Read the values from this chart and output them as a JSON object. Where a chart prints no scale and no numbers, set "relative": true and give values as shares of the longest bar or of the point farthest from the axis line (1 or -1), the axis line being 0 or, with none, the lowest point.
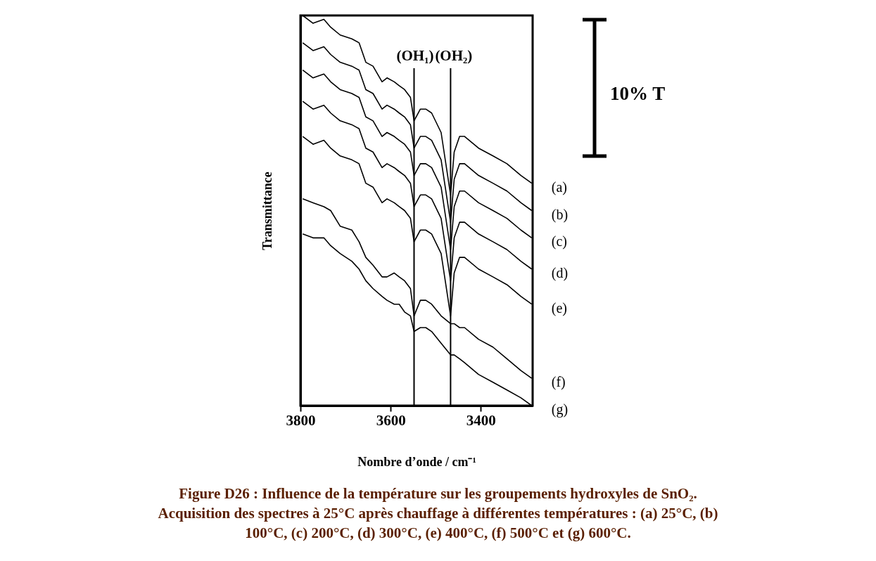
{
  "chart_data": {
    "type": "line",
    "relative": true,
    "xlabel": "Nombre d’onde / cm⁻¹",
    "ylabel": "Transmittance",
    "xlim": [
      3800,
      3285
    ],
    "xticks": [
      3800,
      3600,
      3400
    ],
    "x": [
      3795,
      3772,
      3748,
      3733,
      3712,
      3686,
      3670,
      3655,
      3639,
      3619,
      3608,
      3592,
      3581,
      3569,
      3556,
      3548,
      3534,
      3522,
      3509,
      3488,
      3467,
      3459,
      3447,
      3436,
      3405,
      3373,
      3342,
      3311,
      3287
    ],
    "series": [
      {
        "name": "(a)",
        "color": "#000000",
        "values": [
          1.0,
          0.98,
          0.99,
          0.97,
          0.95,
          0.94,
          0.93,
          0.88,
          0.87,
          0.83,
          0.84,
          0.83,
          0.82,
          0.81,
          0.79,
          0.73,
          0.76,
          0.76,
          0.75,
          0.7,
          0.54,
          0.65,
          0.69,
          0.69,
          0.66,
          0.64,
          0.62,
          0.59,
          0.57
        ]
      },
      {
        "name": "(b)",
        "color": "#000000",
        "values": [
          0.93,
          0.91,
          0.92,
          0.9,
          0.88,
          0.87,
          0.86,
          0.81,
          0.8,
          0.76,
          0.77,
          0.76,
          0.75,
          0.74,
          0.72,
          0.66,
          0.69,
          0.69,
          0.68,
          0.63,
          0.47,
          0.58,
          0.62,
          0.62,
          0.59,
          0.57,
          0.55,
          0.52,
          0.5
        ]
      },
      {
        "name": "(c)",
        "color": "#000000",
        "values": [
          0.86,
          0.84,
          0.85,
          0.83,
          0.81,
          0.8,
          0.79,
          0.74,
          0.73,
          0.69,
          0.7,
          0.69,
          0.68,
          0.67,
          0.65,
          0.59,
          0.62,
          0.62,
          0.61,
          0.56,
          0.4,
          0.51,
          0.55,
          0.55,
          0.52,
          0.5,
          0.48,
          0.45,
          0.43
        ]
      },
      {
        "name": "(d)",
        "color": "#000000",
        "values": [
          0.78,
          0.76,
          0.77,
          0.75,
          0.73,
          0.72,
          0.71,
          0.66,
          0.65,
          0.61,
          0.62,
          0.61,
          0.6,
          0.59,
          0.57,
          0.51,
          0.54,
          0.54,
          0.53,
          0.48,
          0.32,
          0.43,
          0.47,
          0.47,
          0.44,
          0.42,
          0.4,
          0.37,
          0.35
        ]
      },
      {
        "name": "(e)",
        "color": "#000000",
        "values": [
          0.69,
          0.67,
          0.68,
          0.66,
          0.64,
          0.63,
          0.62,
          0.57,
          0.56,
          0.52,
          0.53,
          0.52,
          0.51,
          0.5,
          0.48,
          0.42,
          0.45,
          0.45,
          0.44,
          0.39,
          0.23,
          0.34,
          0.38,
          0.38,
          0.35,
          0.33,
          0.31,
          0.28,
          0.26
        ]
      },
      {
        "name": "(f)",
        "color": "#000000",
        "values": [
          0.53,
          0.52,
          0.51,
          0.5,
          0.46,
          0.45,
          0.42,
          0.38,
          0.36,
          0.33,
          0.33,
          0.34,
          0.33,
          0.32,
          0.3,
          0.23,
          0.27,
          0.27,
          0.26,
          0.23,
          0.21,
          0.21,
          0.2,
          0.2,
          0.17,
          0.15,
          0.12,
          0.09,
          0.07
        ]
      },
      {
        "name": "(g)",
        "color": "#000000",
        "values": [
          0.44,
          0.43,
          0.43,
          0.41,
          0.39,
          0.37,
          0.35,
          0.32,
          0.3,
          0.28,
          0.27,
          0.26,
          0.26,
          0.24,
          0.23,
          0.19,
          0.2,
          0.2,
          0.19,
          0.16,
          0.13,
          0.13,
          0.12,
          0.11,
          0.08,
          0.06,
          0.04,
          0.02,
          0.0
        ]
      }
    ],
    "ref_lines": [
      {
        "axis": "x",
        "value": 3548,
        "label": "(OH₁)"
      },
      {
        "axis": "x",
        "value": 3467,
        "label": "(OH₂)"
      }
    ],
    "annotations": [
      "10% T",
      "Figure D26 : Influence de la température sur les groupements hydroxyles de SnO₂. Acquisition des spectres à 25°C après chauffage à différentes températures : (a) 25°C, (b) 100°C, (c) 200°C, (d) 300°C, (e) 400°C, (f) 500°C et (g) 600°C."
    ]
  }
}
